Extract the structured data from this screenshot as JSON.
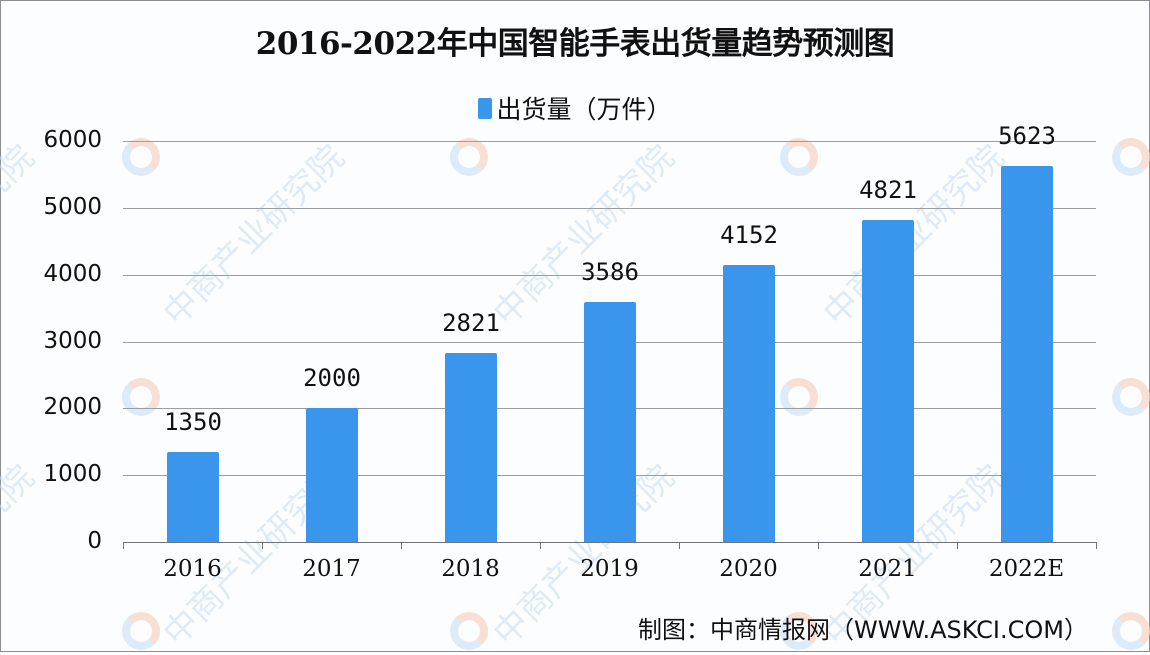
{
  "title": "2016-2022年中国智能手表出货量趋势预测图",
  "legend": {
    "label": "出货量（万件）",
    "color": "#3a96ec"
  },
  "source": "制图：中商情报网（WWW.ASKCI.COM）",
  "watermark": {
    "text": "中商产业研究院"
  },
  "colors": {
    "bar": "#3a96ec",
    "grid": "#9a9ea4",
    "background": "#fcfdff"
  },
  "y_axis": {
    "ticks": [
      "0",
      "1000",
      "2000",
      "3000",
      "4000",
      "5000",
      "6000"
    ]
  },
  "x_axis": {
    "ticks": [
      "2016",
      "2017",
      "2018",
      "2019",
      "2020",
      "2021",
      "2022E"
    ]
  },
  "bars": [
    {
      "category": "2016",
      "value": 1350,
      "label": "1350"
    },
    {
      "category": "2017",
      "value": 2000,
      "label": "2000"
    },
    {
      "category": "2018",
      "value": 2821,
      "label": "2821"
    },
    {
      "category": "2019",
      "value": 3586,
      "label": "3586"
    },
    {
      "category": "2020",
      "value": 4152,
      "label": "4152"
    },
    {
      "category": "2021",
      "value": 4821,
      "label": "4821"
    },
    {
      "category": "2022E",
      "value": 5623,
      "label": "5623"
    }
  ],
  "chart_data": {
    "type": "bar",
    "title": "2016-2022年中国智能手表出货量趋势预测图",
    "categories": [
      "2016",
      "2017",
      "2018",
      "2019",
      "2020",
      "2021",
      "2022E"
    ],
    "series": [
      {
        "name": "出货量（万件）",
        "values": [
          1350,
          2000,
          2821,
          3586,
          4152,
          4821,
          5623
        ]
      }
    ],
    "xlabel": "",
    "ylabel": "",
    "ylim": [
      0,
      6000
    ],
    "yticks": [
      0,
      1000,
      2000,
      3000,
      4000,
      5000,
      6000
    ],
    "grid": true,
    "legend_position": "top",
    "data_labels": true,
    "annotations": [
      "制图：中商情报网（WWW.ASKCI.COM）"
    ]
  }
}
